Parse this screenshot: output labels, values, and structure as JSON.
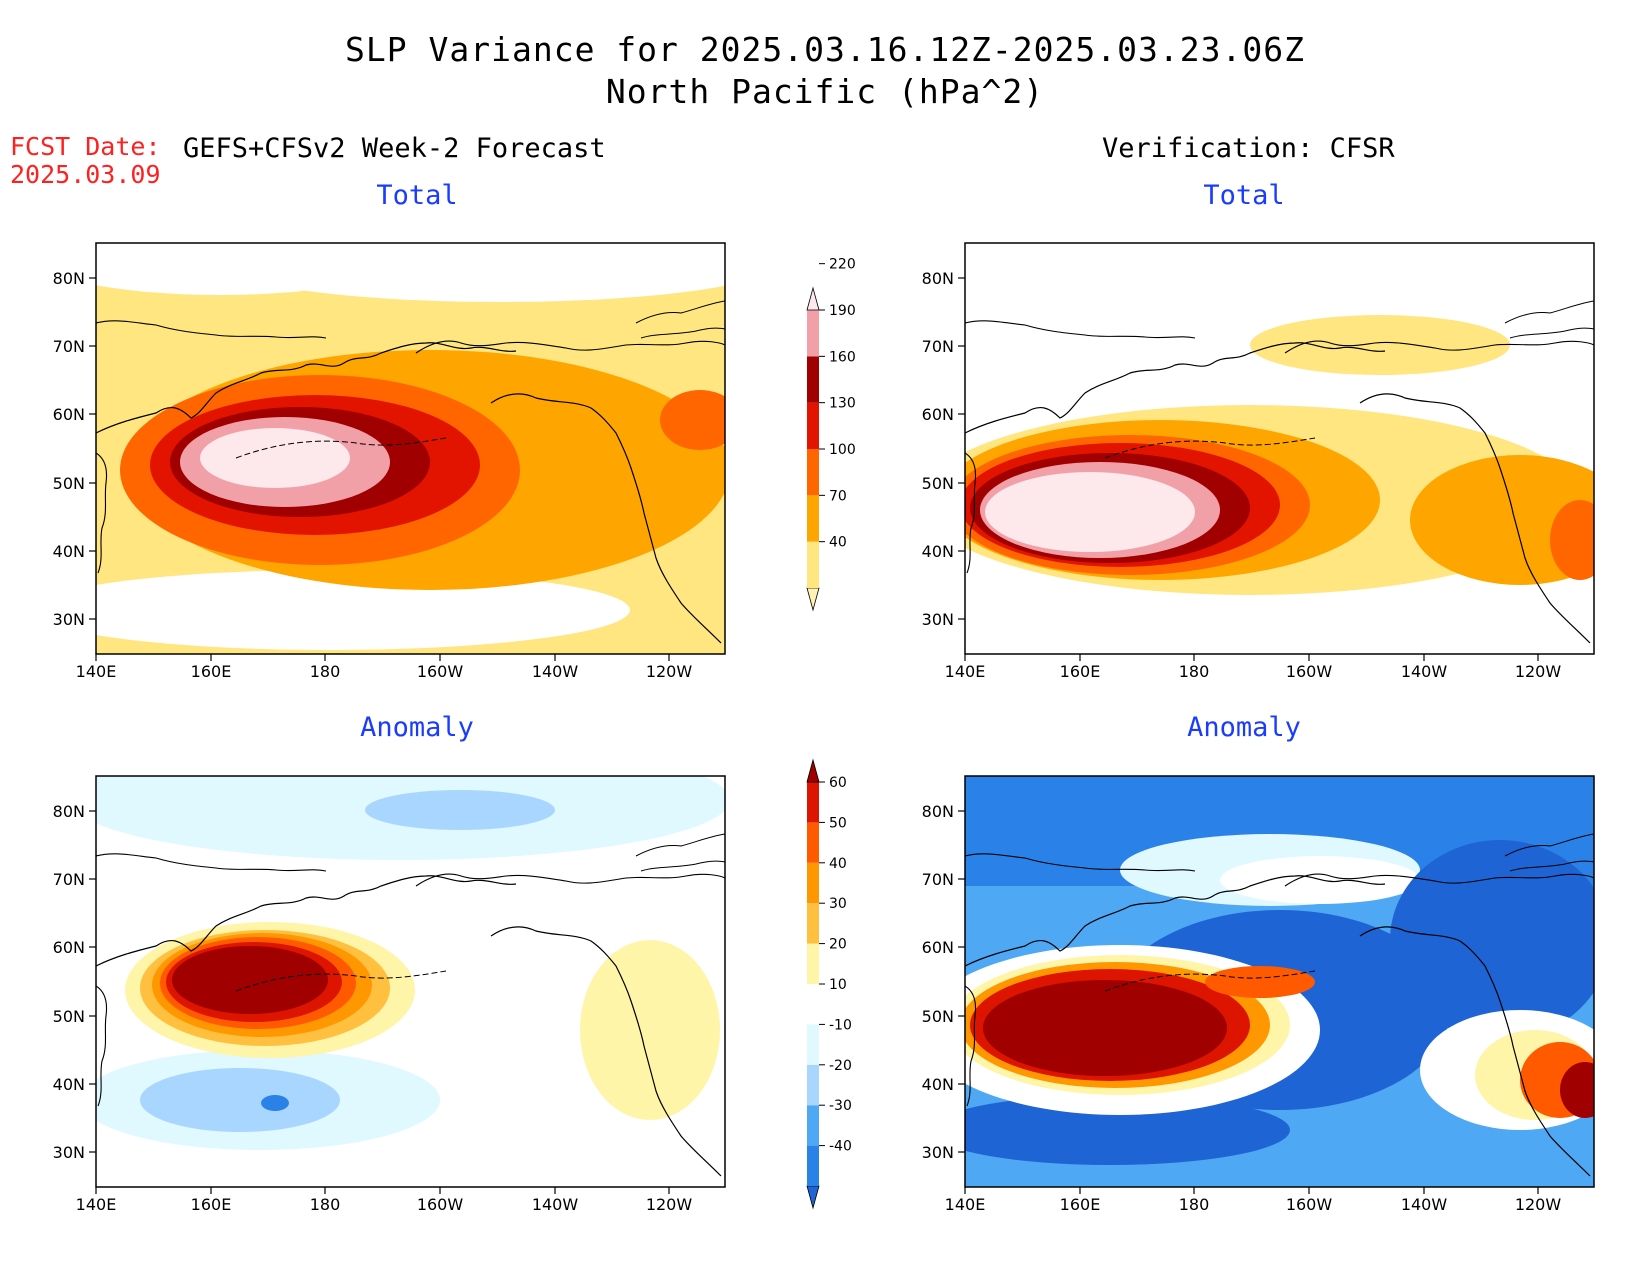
{
  "header": {
    "title": "SLP Variance for 2025.03.16.12Z-2025.03.23.06Z",
    "subtitle": "North Pacific (hPa^2)",
    "fcst_label": "FCST Date:",
    "fcst_date": "2025.03.09"
  },
  "columns": {
    "left": "GEFS+CFSv2 Week-2 Forecast",
    "right": "Verification: CFSR"
  },
  "rows": {
    "top": "Total",
    "bottom": "Anomaly"
  },
  "axes": {
    "lat_labels": [
      "80N",
      "70N",
      "60N",
      "50N",
      "40N",
      "30N"
    ],
    "lon_labels": [
      "140E",
      "160E",
      "180",
      "160W",
      "140W",
      "120W"
    ]
  },
  "colorbars": {
    "total": {
      "levels": [
        "40",
        "70",
        "100",
        "130",
        "160",
        "190",
        "220"
      ],
      "colors": [
        "#fff2b3",
        "#ffe680",
        "#ffa500",
        "#ff6600",
        "#e21400",
        "#a00000",
        "#f2a0a8",
        "#fde8ec"
      ]
    },
    "anomaly": {
      "levels": [
        "-40",
        "-30",
        "-20",
        "-10",
        "10",
        "20",
        "30",
        "40",
        "50",
        "60"
      ],
      "colors": [
        "#1e64d4",
        "#2a82e8",
        "#4ea8f4",
        "#a8d6ff",
        "#e0f8ff",
        "#ffffff",
        "#fff5a8",
        "#ffc040",
        "#ff9800",
        "#ff5a00",
        "#dc1400",
        "#a00000"
      ]
    }
  },
  "chart_data": [
    {
      "type": "heatmap",
      "title": "Total",
      "panel": "GEFS+CFSv2 Week-2 Forecast",
      "units": "hPa^2",
      "peak_region": "about 45-57N, 160E-175E",
      "peak_value": ">220"
    },
    {
      "type": "heatmap",
      "title": "Total",
      "panel": "Verification: CFSR",
      "units": "hPa^2",
      "peak_region": "about 40-55N, 145E-180",
      "peak_value": ">220"
    },
    {
      "type": "heatmap",
      "title": "Anomaly",
      "panel": "GEFS+CFSv2 Week-2 Forecast",
      "units": "hPa^2",
      "peak_region": "about 47-57N, 160E-178E",
      "peak_value": ">60"
    },
    {
      "type": "heatmap",
      "title": "Anomaly",
      "panel": "Verification: CFSR",
      "units": "hPa^2",
      "peak_region": "about 40-55N, 145E-175E",
      "peak_value": ">60"
    }
  ]
}
